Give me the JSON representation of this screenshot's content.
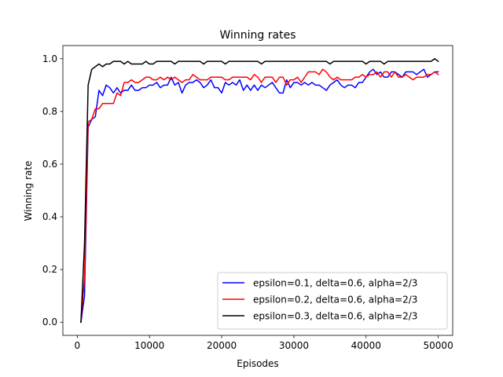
{
  "chart_data": {
    "type": "line",
    "title": "Winning rates",
    "xlabel": "Episodes",
    "ylabel": "Winning rate",
    "xlim": [
      -2000,
      52000
    ],
    "ylim": [
      -0.05,
      1.05
    ],
    "xticks": [
      0,
      10000,
      20000,
      30000,
      40000,
      50000
    ],
    "xtick_labels": [
      "0",
      "10000",
      "20000",
      "30000",
      "40000",
      "50000"
    ],
    "yticks": [
      0.0,
      0.2,
      0.4,
      0.6,
      0.8,
      1.0
    ],
    "ytick_labels": [
      "0.0",
      "0.2",
      "0.4",
      "0.6",
      "0.8",
      "1.0"
    ],
    "grid": false,
    "legend_position": "lower-right",
    "x": [
      500,
      1000,
      1500,
      2000,
      2500,
      3000,
      3500,
      4000,
      4500,
      5000,
      5500,
      6000,
      6500,
      7000,
      7500,
      8000,
      8500,
      9000,
      9500,
      10000,
      10500,
      11000,
      11500,
      12000,
      12500,
      13000,
      13500,
      14000,
      14500,
      15000,
      15500,
      16000,
      16500,
      17000,
      17500,
      18000,
      18500,
      19000,
      19500,
      20000,
      20500,
      21000,
      21500,
      22000,
      22500,
      23000,
      23500,
      24000,
      24500,
      25000,
      25500,
      26000,
      26500,
      27000,
      27500,
      28000,
      28500,
      29000,
      29500,
      30000,
      30500,
      31000,
      31500,
      32000,
      32500,
      33000,
      33500,
      34000,
      34500,
      35000,
      35500,
      36000,
      36500,
      37000,
      37500,
      38000,
      38500,
      39000,
      39500,
      40000,
      40500,
      41000,
      41500,
      42000,
      42500,
      43000,
      43500,
      44000,
      44500,
      45000,
      45500,
      46000,
      46500,
      47000,
      47500,
      48000,
      48500,
      49000,
      49500,
      50000
    ],
    "series": [
      {
        "name": "epsilon=0.1, delta=0.6, alpha=2/3",
        "color": "#0000ff",
        "values": [
          0.0,
          0.1,
          0.74,
          0.77,
          0.78,
          0.88,
          0.86,
          0.9,
          0.89,
          0.87,
          0.89,
          0.87,
          0.88,
          0.88,
          0.9,
          0.88,
          0.88,
          0.89,
          0.89,
          0.9,
          0.9,
          0.91,
          0.89,
          0.9,
          0.9,
          0.93,
          0.9,
          0.91,
          0.87,
          0.9,
          0.91,
          0.91,
          0.92,
          0.91,
          0.89,
          0.9,
          0.92,
          0.89,
          0.89,
          0.87,
          0.91,
          0.9,
          0.91,
          0.9,
          0.92,
          0.88,
          0.9,
          0.88,
          0.9,
          0.88,
          0.9,
          0.89,
          0.9,
          0.91,
          0.89,
          0.87,
          0.87,
          0.92,
          0.89,
          0.91,
          0.91,
          0.9,
          0.91,
          0.9,
          0.91,
          0.9,
          0.9,
          0.89,
          0.88,
          0.9,
          0.91,
          0.92,
          0.9,
          0.89,
          0.9,
          0.9,
          0.89,
          0.91,
          0.91,
          0.93,
          0.95,
          0.96,
          0.94,
          0.95,
          0.93,
          0.93,
          0.95,
          0.95,
          0.94,
          0.93,
          0.95,
          0.95,
          0.95,
          0.94,
          0.95,
          0.96,
          0.93,
          0.94,
          0.95,
          0.95
        ]
      },
      {
        "name": "epsilon=0.2, delta=0.6, alpha=2/3",
        "color": "#ff0000",
        "values": [
          0.0,
          0.17,
          0.76,
          0.77,
          0.81,
          0.81,
          0.83,
          0.83,
          0.83,
          0.83,
          0.87,
          0.86,
          0.91,
          0.91,
          0.92,
          0.91,
          0.91,
          0.92,
          0.93,
          0.93,
          0.92,
          0.92,
          0.93,
          0.92,
          0.93,
          0.92,
          0.93,
          0.92,
          0.91,
          0.92,
          0.92,
          0.94,
          0.93,
          0.92,
          0.92,
          0.92,
          0.93,
          0.93,
          0.93,
          0.93,
          0.92,
          0.92,
          0.93,
          0.93,
          0.93,
          0.93,
          0.93,
          0.92,
          0.94,
          0.93,
          0.91,
          0.93,
          0.93,
          0.93,
          0.91,
          0.93,
          0.93,
          0.9,
          0.92,
          0.92,
          0.93,
          0.91,
          0.93,
          0.95,
          0.95,
          0.95,
          0.94,
          0.96,
          0.95,
          0.93,
          0.92,
          0.93,
          0.92,
          0.92,
          0.92,
          0.92,
          0.93,
          0.93,
          0.94,
          0.93,
          0.94,
          0.94,
          0.95,
          0.93,
          0.95,
          0.95,
          0.93,
          0.95,
          0.93,
          0.93,
          0.94,
          0.93,
          0.92,
          0.93,
          0.93,
          0.93,
          0.94,
          0.94,
          0.95,
          0.94
        ]
      },
      {
        "name": "epsilon=0.3, delta=0.6, alpha=2/3",
        "color": "#000000",
        "values": [
          0.0,
          0.3,
          0.9,
          0.96,
          0.97,
          0.98,
          0.97,
          0.98,
          0.98,
          0.99,
          0.99,
          0.99,
          0.98,
          0.99,
          0.98,
          0.98,
          0.98,
          0.98,
          0.99,
          0.98,
          0.98,
          0.99,
          0.99,
          0.99,
          0.99,
          0.99,
          0.98,
          0.99,
          0.99,
          0.99,
          0.99,
          0.99,
          0.99,
          0.99,
          0.98,
          0.99,
          0.99,
          0.99,
          0.99,
          0.99,
          0.98,
          0.99,
          0.99,
          0.99,
          0.99,
          0.99,
          0.99,
          0.99,
          0.99,
          0.99,
          0.98,
          0.99,
          0.99,
          0.99,
          0.99,
          0.99,
          0.99,
          0.99,
          0.99,
          0.99,
          0.99,
          0.99,
          0.99,
          0.99,
          0.99,
          0.99,
          0.99,
          0.99,
          0.99,
          0.98,
          0.99,
          0.99,
          0.99,
          0.99,
          0.99,
          0.99,
          0.99,
          0.99,
          0.99,
          0.98,
          0.99,
          0.99,
          0.99,
          0.99,
          0.98,
          0.99,
          0.99,
          0.99,
          0.99,
          0.99,
          0.99,
          0.99,
          0.99,
          0.99,
          0.99,
          0.99,
          0.99,
          0.99,
          1.0,
          0.99
        ]
      }
    ]
  }
}
